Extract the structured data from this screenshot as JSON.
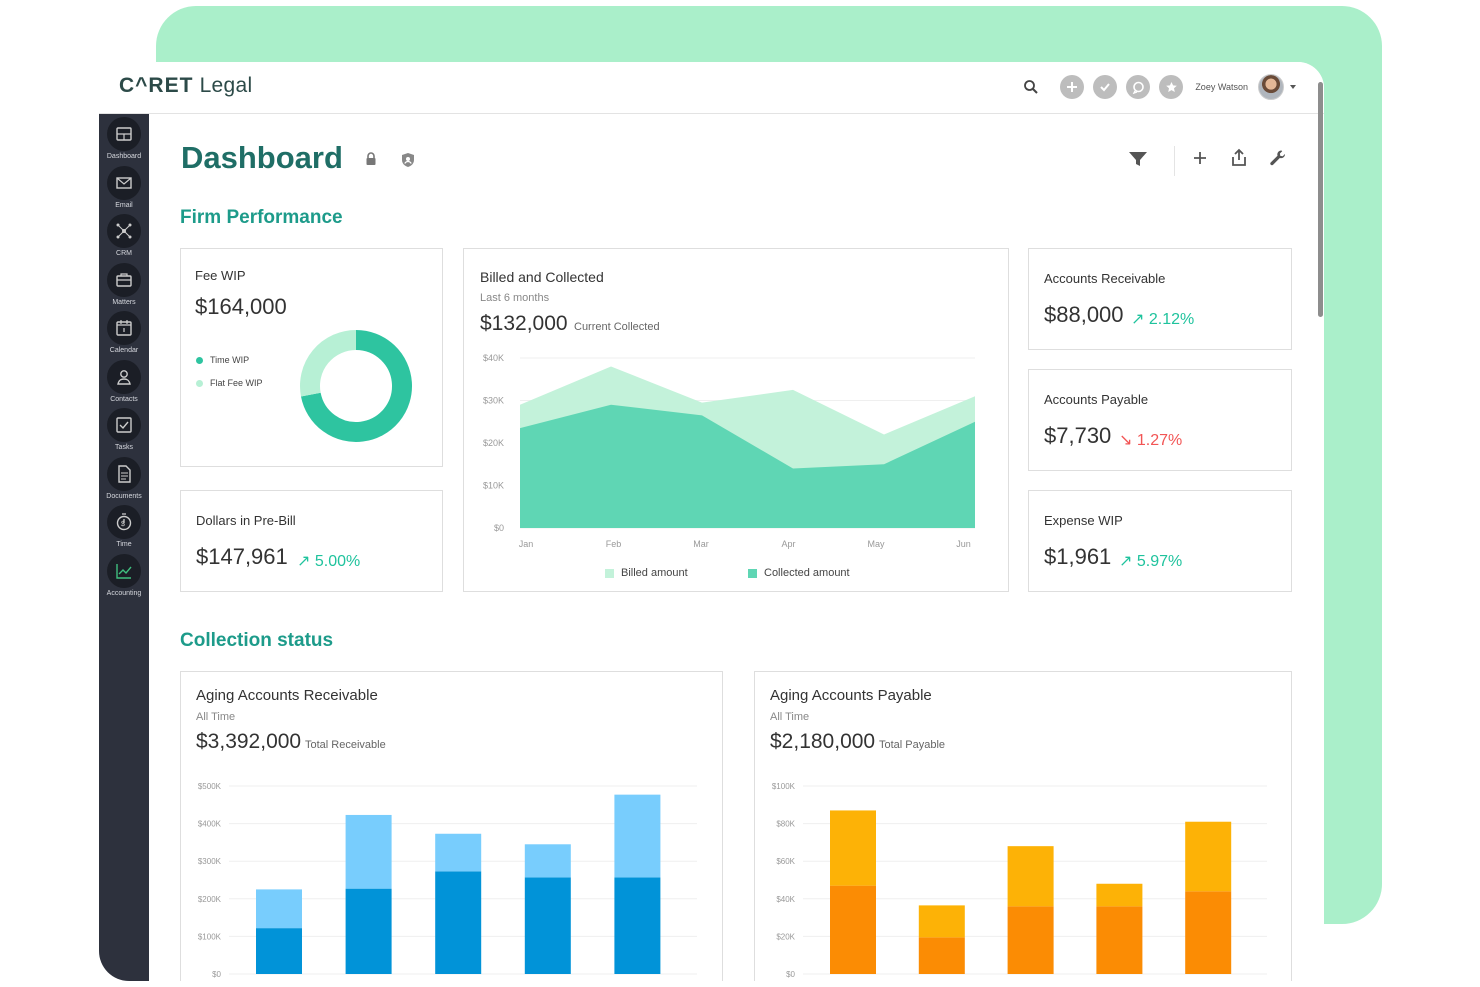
{
  "app": {
    "logo_caret": "C^RET",
    "logo_legal": " Legal",
    "user_name": "Zoey Watson"
  },
  "sidebar": {
    "items": [
      {
        "label": "Dashboard",
        "icon": "dashboard-icon"
      },
      {
        "label": "Email",
        "icon": "email-icon"
      },
      {
        "label": "CRM",
        "icon": "crm-icon"
      },
      {
        "label": "Matters",
        "icon": "matters-icon"
      },
      {
        "label": "Calendar",
        "icon": "calendar-icon"
      },
      {
        "label": "Contacts",
        "icon": "contacts-icon"
      },
      {
        "label": "Tasks",
        "icon": "tasks-icon"
      },
      {
        "label": "Documents",
        "icon": "documents-icon"
      },
      {
        "label": "Time",
        "icon": "time-icon"
      },
      {
        "label": "Accounting",
        "icon": "accounting-icon"
      }
    ]
  },
  "page": {
    "title": "Dashboard"
  },
  "sections": {
    "firm_performance": "Firm Performance",
    "collection_status": "Collection status"
  },
  "colors": {
    "accent": "#1d9b8a",
    "title": "#1f6e66",
    "up": "#1fc39d",
    "down": "#f25555",
    "sidebar": "#2d313d"
  },
  "cards": {
    "fee_wip": {
      "title": "Fee WIP",
      "value": "$164,000",
      "legend": [
        "Time WIP",
        "Flat Fee WIP"
      ]
    },
    "pre_bill": {
      "title": "Dollars in Pre-Bill",
      "value": "$147,961",
      "trend": "↗ 5.00%"
    },
    "billed": {
      "title": "Billed and Collected",
      "subtitle": "Last 6 months",
      "value": "$132,000",
      "caption": "Current Collected",
      "legend": [
        "Billed amount",
        "Collected amount"
      ]
    },
    "ar": {
      "title": "Accounts Receivable",
      "value": "$88,000",
      "trend": "↗ 2.12%"
    },
    "ap": {
      "title": "Accounts Payable",
      "value": "$7,730",
      "trend": "↘ 1.27%"
    },
    "expense": {
      "title": "Expense WIP",
      "value": "$1,961",
      "trend": "↗ 5.97%"
    },
    "aging_ar": {
      "title": "Aging Accounts Receivable",
      "subtitle": "All Time",
      "value": "$3,392,000",
      "caption": "Total Receivable"
    },
    "aging_ap": {
      "title": "Aging Accounts Payable",
      "subtitle": "All Time",
      "value": "$2,180,000",
      "caption": "Total Payable"
    }
  },
  "chart_data": [
    {
      "type": "pie",
      "labels": [
        "Time WIP",
        "Flat Fee WIP"
      ],
      "values": [
        72,
        28
      ],
      "colors": [
        "#2ec4a0",
        "#b7f0d5"
      ]
    },
    {
      "type": "area",
      "categories": [
        "Jan",
        "Feb",
        "Mar",
        "Apr",
        "May",
        "Jun"
      ],
      "y_ticks": [
        "$40K",
        "$30K",
        "$20K",
        "$10K",
        "$0"
      ],
      "ylim": [
        0,
        40000
      ],
      "series": [
        {
          "name": "Billed amount",
          "values": [
            29000,
            38000,
            29500,
            32500,
            22000,
            31000
          ],
          "color": "#c3f2da"
        },
        {
          "name": "Collected amount",
          "values": [
            23500,
            29000,
            26500,
            14000,
            15000,
            25000
          ],
          "color": "#5fd6b4"
        }
      ]
    },
    {
      "type": "bar",
      "stacked": true,
      "categories": [
        "1",
        "2",
        "3",
        "4",
        "5"
      ],
      "y_ticks": [
        "$500K",
        "$400K",
        "$300K",
        "$200K",
        "$100K",
        "$0"
      ],
      "ylim": [
        0,
        500000
      ],
      "series": [
        {
          "values": [
            122000,
            227000,
            273000,
            257000,
            257000
          ],
          "color": "#0193d8"
        },
        {
          "values": [
            103000,
            196000,
            100000,
            88000,
            220000
          ],
          "color": "#78cdfd"
        }
      ]
    },
    {
      "type": "bar",
      "stacked": true,
      "categories": [
        "1",
        "2",
        "3",
        "4",
        "5"
      ],
      "y_ticks": [
        "$100K",
        "$80K",
        "$60K",
        "$40K",
        "$20K",
        "$0"
      ],
      "ylim": [
        0,
        100000
      ],
      "series": [
        {
          "values": [
            47000,
            19500,
            36000,
            36000,
            44000
          ],
          "color": "#fb8c04"
        },
        {
          "values": [
            40000,
            17000,
            32000,
            12000,
            37000
          ],
          "color": "#fdb206"
        }
      ]
    }
  ]
}
